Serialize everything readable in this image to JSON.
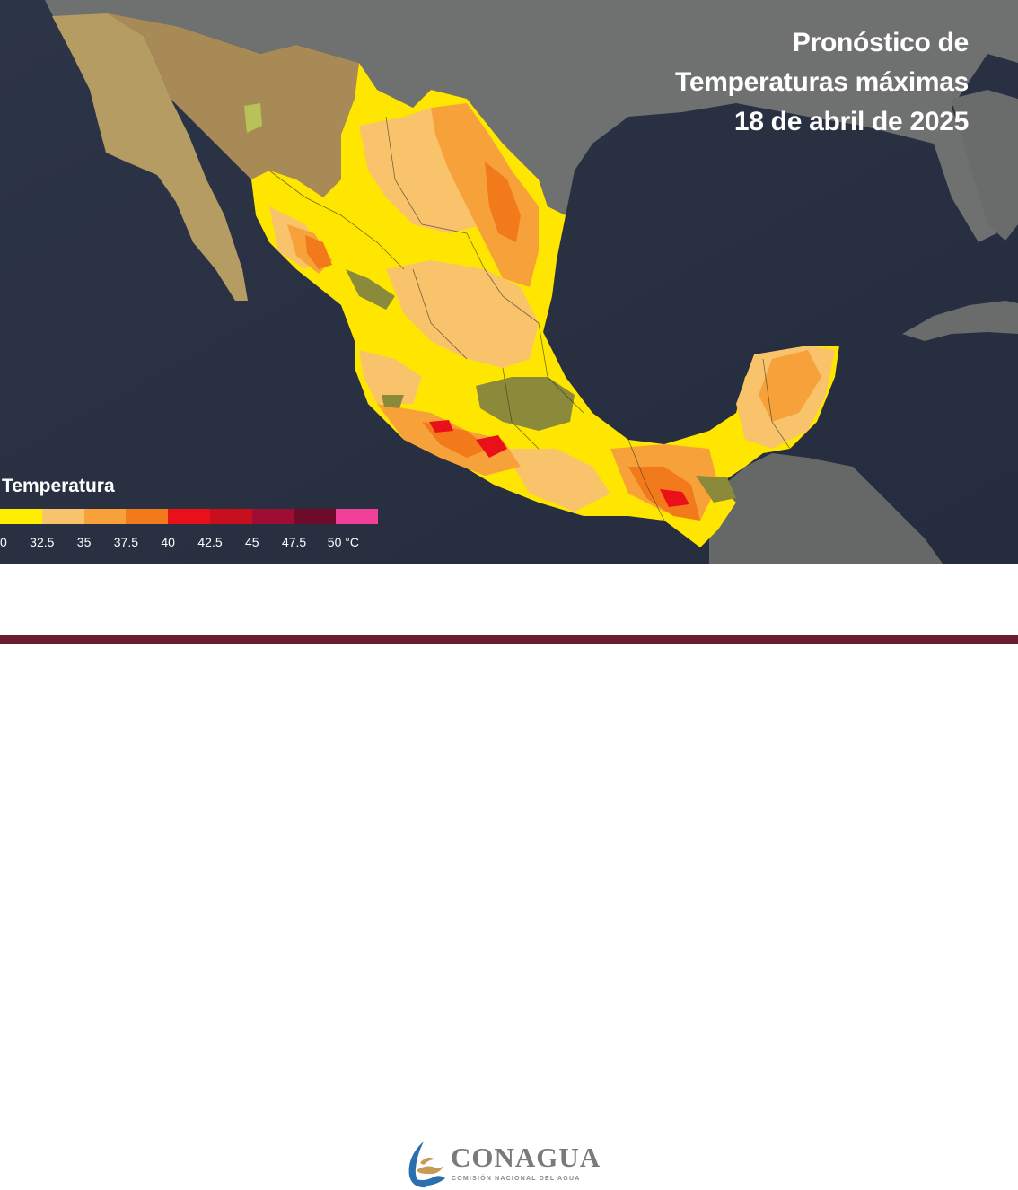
{
  "map": {
    "title_lines": [
      "Pronóstico de",
      "Temperaturas máximas",
      "18 de abril de 2025"
    ]
  },
  "legend": {
    "title": "Temperatura",
    "labels": [
      "0",
      "32.5",
      "35",
      "37.5",
      "40",
      "42.5",
      "45",
      "47.5",
      "50 °C"
    ],
    "colors": [
      "#ffee00",
      "#f9c36b",
      "#f7a13a",
      "#f27a1a",
      "#e9101a",
      "#c80f1e",
      "#a00d32",
      "#6e0a2a",
      "#f0409a"
    ]
  },
  "footer": {
    "brand": "CONAGUA",
    "subtitle": "COMISIÓN NACIONAL DEL AGUA",
    "logo_icon": "conagua-water-wave-icon",
    "stripe_color": "#6a1d2f"
  }
}
